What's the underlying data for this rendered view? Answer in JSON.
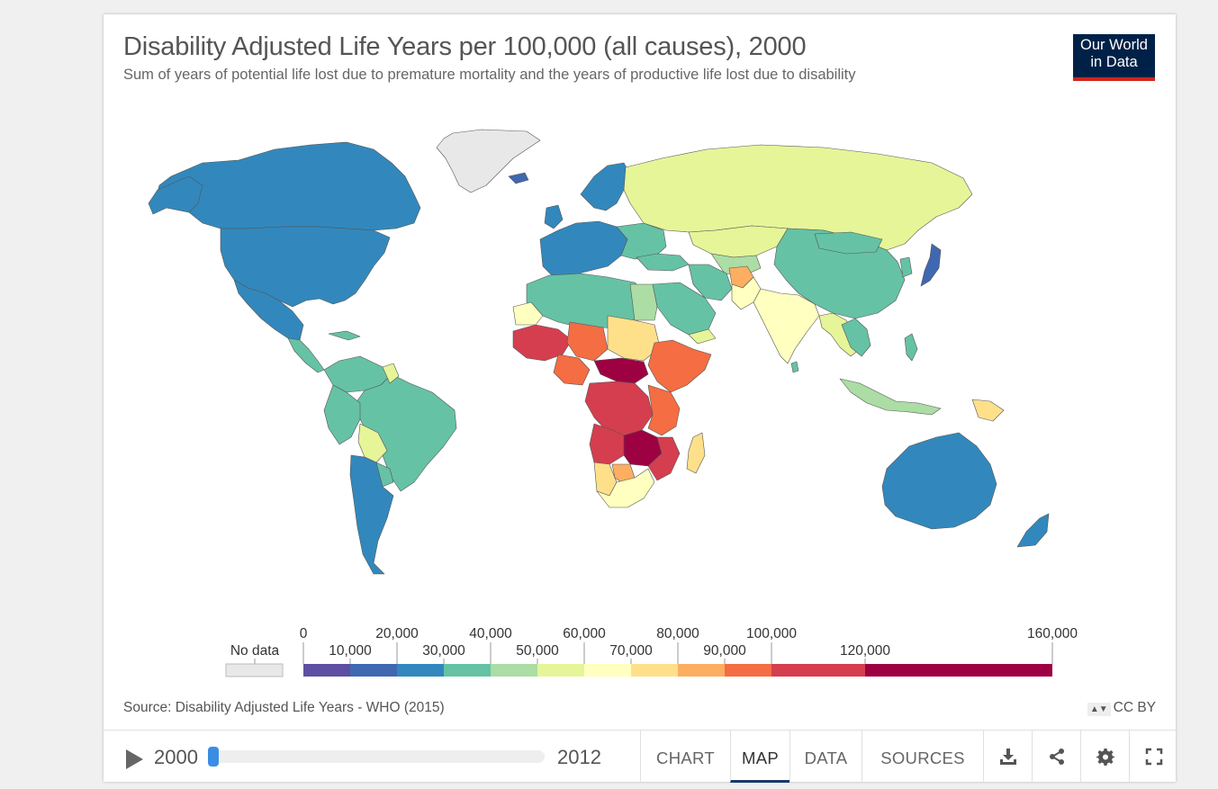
{
  "header": {
    "title": "Disability Adjusted Life Years per 100,000 (all causes), 2000",
    "subtitle": "Sum of years of potential life lost due to premature mortality and the years of productive life lost due to disability",
    "logo_line1": "Our World",
    "logo_line2": "in Data"
  },
  "legend": {
    "no_data_label": "No data",
    "no_data_color": "#e8e8e8",
    "upper_labels": [
      "0",
      "20,000",
      "40,000",
      "60,000",
      "80,000",
      "100,000",
      "160,000"
    ],
    "lower_labels": [
      "10,000",
      "30,000",
      "50,000",
      "70,000",
      "90,000",
      "120,000"
    ],
    "bins": [
      {
        "min": 0,
        "max": 10000,
        "color": "#5e4fa2"
      },
      {
        "min": 10000,
        "max": 20000,
        "color": "#4068b0"
      },
      {
        "min": 20000,
        "max": 30000,
        "color": "#3288bd"
      },
      {
        "min": 30000,
        "max": 40000,
        "color": "#66c2a5"
      },
      {
        "min": 40000,
        "max": 50000,
        "color": "#abdda4"
      },
      {
        "min": 50000,
        "max": 60000,
        "color": "#e6f598"
      },
      {
        "min": 60000,
        "max": 70000,
        "color": "#ffffbf"
      },
      {
        "min": 70000,
        "max": 80000,
        "color": "#fee08b"
      },
      {
        "min": 80000,
        "max": 90000,
        "color": "#fdae61"
      },
      {
        "min": 90000,
        "max": 100000,
        "color": "#f46d43"
      },
      {
        "min": 100000,
        "max": 120000,
        "color": "#d53e4f"
      },
      {
        "min": 120000,
        "max": 160000,
        "color": "#9e0142"
      }
    ]
  },
  "footer": {
    "source": "Source: Disability Adjusted Life Years - WHO (2015)",
    "license": "CC BY",
    "license_arrows": "▲▼"
  },
  "controls": {
    "year_start": "2000",
    "year_end": "2012",
    "timeline_position": 0,
    "tabs": [
      "CHART",
      "MAP",
      "DATA",
      "SOURCES"
    ],
    "active_tab": "MAP"
  },
  "icons": [
    "play-icon",
    "download-icon",
    "share-icon",
    "settings-icon",
    "fullscreen-icon"
  ]
}
